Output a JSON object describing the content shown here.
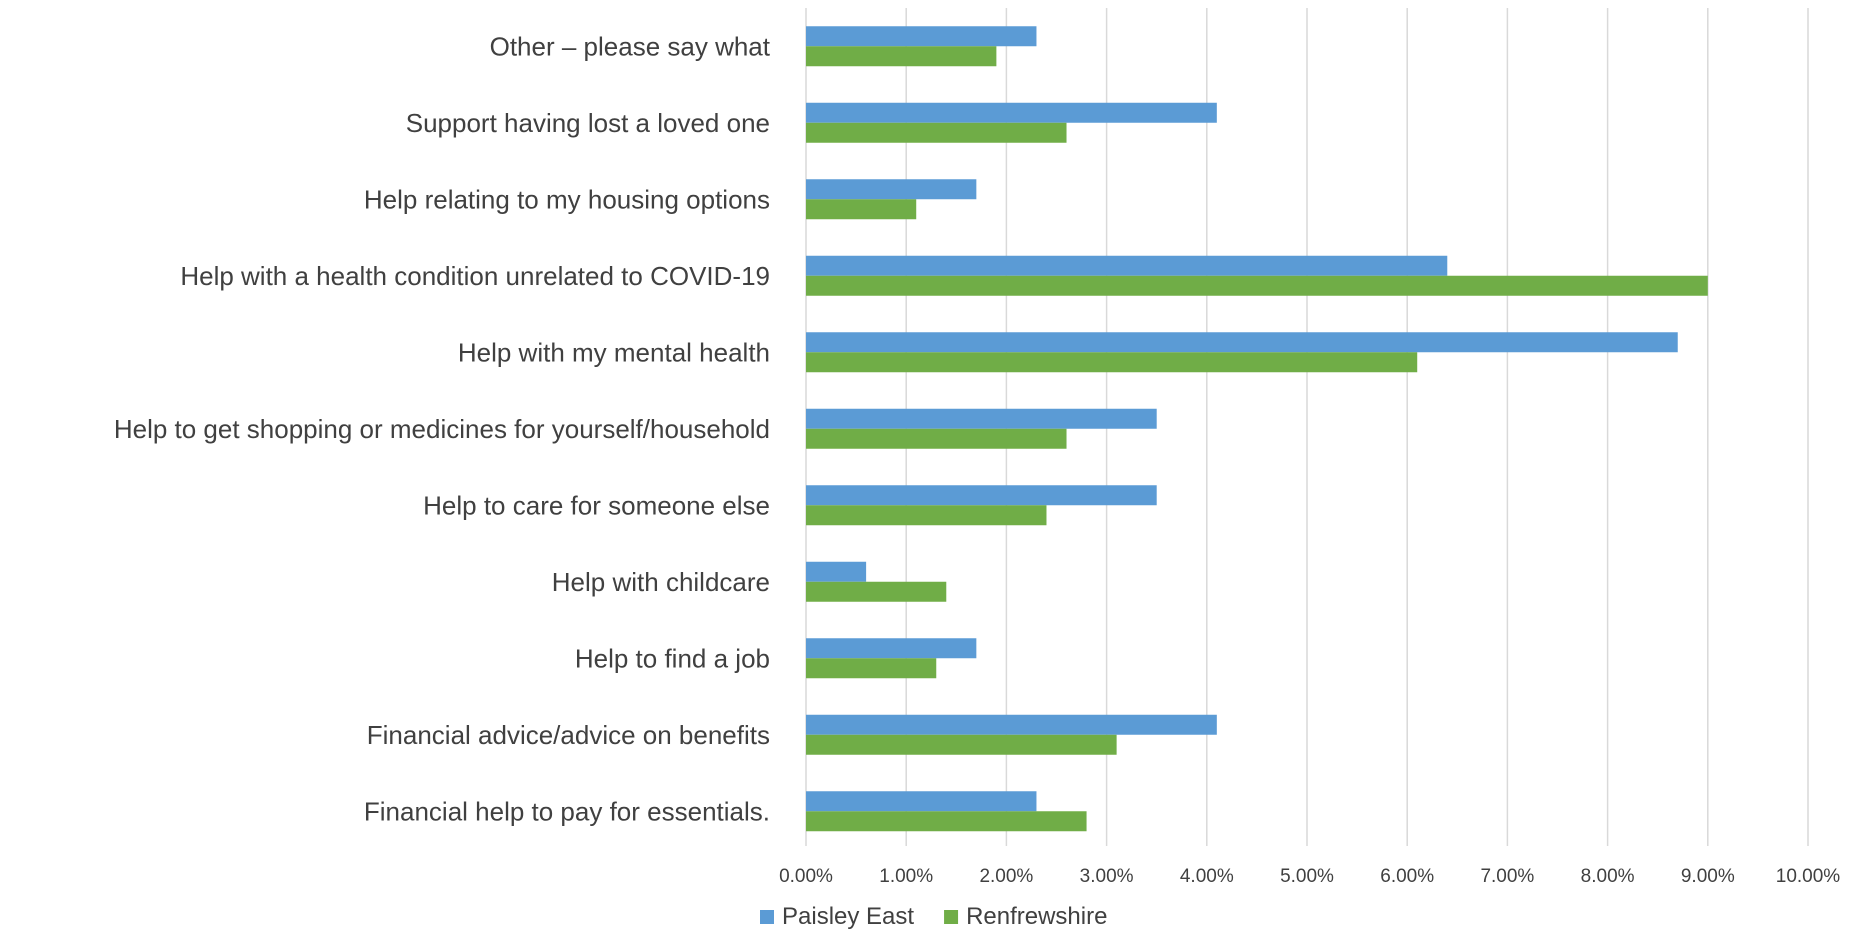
{
  "chart_data": {
    "type": "bar",
    "orientation": "horizontal",
    "categories": [
      "Other – please say what",
      "Support having lost a loved one",
      "Help relating to my housing options",
      "Help with a health condition unrelated to COVID-19",
      "Help with my mental health",
      "Help to get shopping or medicines for yourself/household",
      "Help to care for someone else",
      "Help with childcare",
      "Help to find a job",
      "Financial advice/advice on benefits",
      "Financial help to pay for essentials."
    ],
    "series": [
      {
        "name": "Paisley East",
        "color": "#5b9bd5",
        "values": [
          2.3,
          4.1,
          1.7,
          6.4,
          8.7,
          3.5,
          3.5,
          0.6,
          1.7,
          4.1,
          2.3
        ]
      },
      {
        "name": "Renfrewshire",
        "color": "#70ad47",
        "values": [
          1.9,
          2.6,
          1.1,
          9.0,
          6.1,
          2.6,
          2.4,
          1.4,
          1.3,
          3.1,
          2.8
        ]
      }
    ],
    "xlim": [
      0,
      10
    ],
    "x_ticks": [
      "0.00%",
      "1.00%",
      "2.00%",
      "3.00%",
      "4.00%",
      "5.00%",
      "6.00%",
      "7.00%",
      "8.00%",
      "9.00%",
      "10.00%"
    ],
    "grid": true,
    "legend_position": "bottom"
  }
}
